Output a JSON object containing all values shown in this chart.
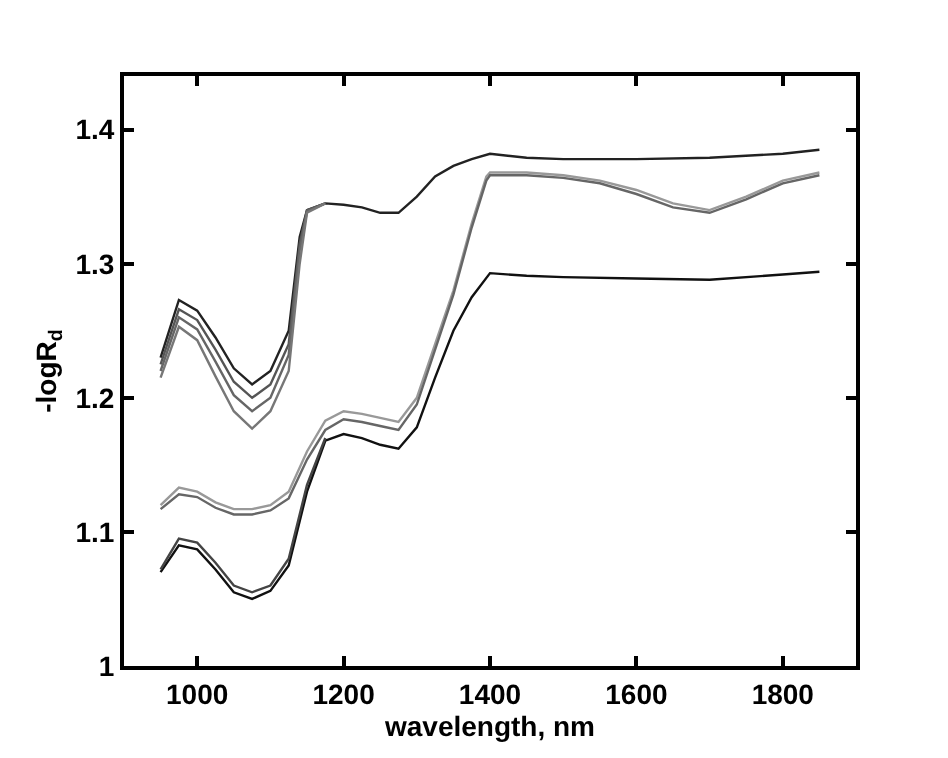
{
  "chart_data": {
    "type": "line",
    "xlabel": "wavelength, nm",
    "ylabel": "-logR$_{d}$",
    "xlim": [
      900,
      1900
    ],
    "ylim": [
      1,
      1.44
    ],
    "xticks": [
      1000,
      1200,
      1400,
      1600,
      1800
    ],
    "yticks": [
      1,
      1.1,
      1.2,
      1.3,
      1.4
    ],
    "marker": "none",
    "line_style": "solid",
    "series": [
      {
        "color": "#222222",
        "x": [
          950,
          975,
          1000,
          1025,
          1050,
          1075,
          1100,
          1125,
          1140,
          1150,
          1175,
          1200,
          1225,
          1250,
          1275,
          1300,
          1325,
          1350,
          1375,
          1400,
          1450,
          1500,
          1600,
          1700,
          1800,
          1850
        ],
        "values": [
          1.23,
          1.273,
          1.265,
          1.245,
          1.222,
          1.21,
          1.22,
          1.25,
          1.32,
          1.34,
          1.345,
          1.344,
          1.342,
          1.338,
          1.338,
          1.35,
          1.365,
          1.373,
          1.378,
          1.382,
          1.379,
          1.378,
          1.378,
          1.379,
          1.382,
          1.385
        ]
      },
      {
        "color": "#555555",
        "x": [
          950,
          975,
          1000,
          1025,
          1050,
          1075,
          1100,
          1125,
          1140,
          1150,
          1175
        ],
        "values": [
          1.225,
          1.266,
          1.258,
          1.236,
          1.212,
          1.2,
          1.21,
          1.24,
          1.315,
          1.34,
          1.345
        ]
      },
      {
        "color": "#666666",
        "x": [
          950,
          975,
          1000,
          1025,
          1050,
          1075,
          1100,
          1125,
          1140,
          1150,
          1175
        ],
        "values": [
          1.22,
          1.26,
          1.251,
          1.227,
          1.202,
          1.19,
          1.2,
          1.232,
          1.31,
          1.339,
          1.345
        ]
      },
      {
        "color": "#777777",
        "x": [
          950,
          975,
          1000,
          1025,
          1050,
          1075,
          1100,
          1125,
          1140,
          1150,
          1175
        ],
        "values": [
          1.215,
          1.253,
          1.243,
          1.216,
          1.19,
          1.177,
          1.19,
          1.22,
          1.3,
          1.338,
          1.345
        ]
      },
      {
        "color": "#999999",
        "x": [
          950,
          975,
          1000,
          1025,
          1050,
          1075,
          1100,
          1125,
          1150,
          1175,
          1200,
          1225,
          1250,
          1275,
          1300,
          1325,
          1350,
          1375,
          1395,
          1400,
          1450,
          1500,
          1550,
          1600,
          1650,
          1700,
          1750,
          1800,
          1850
        ],
        "values": [
          1.12,
          1.133,
          1.13,
          1.122,
          1.117,
          1.117,
          1.12,
          1.13,
          1.16,
          1.183,
          1.19,
          1.188,
          1.185,
          1.182,
          1.2,
          1.24,
          1.28,
          1.33,
          1.365,
          1.368,
          1.368,
          1.366,
          1.362,
          1.355,
          1.345,
          1.34,
          1.35,
          1.362,
          1.368
        ]
      },
      {
        "color": "#666666",
        "x": [
          950,
          975,
          1000,
          1025,
          1050,
          1075,
          1100,
          1125,
          1150,
          1175,
          1200,
          1225,
          1250,
          1275,
          1300,
          1325,
          1350,
          1375,
          1395,
          1400,
          1450,
          1500,
          1550,
          1600,
          1650,
          1700,
          1750,
          1800,
          1850
        ],
        "values": [
          1.117,
          1.128,
          1.126,
          1.118,
          1.113,
          1.113,
          1.116,
          1.125,
          1.154,
          1.176,
          1.184,
          1.182,
          1.179,
          1.176,
          1.195,
          1.236,
          1.277,
          1.327,
          1.362,
          1.366,
          1.366,
          1.364,
          1.36,
          1.352,
          1.342,
          1.338,
          1.348,
          1.36,
          1.366
        ]
      },
      {
        "color": "#111111",
        "x": [
          950,
          975,
          1000,
          1025,
          1050,
          1075,
          1100,
          1125,
          1150,
          1175,
          1200,
          1225,
          1250,
          1275,
          1300,
          1325,
          1350,
          1375,
          1400,
          1450,
          1500,
          1600,
          1700,
          1800,
          1850
        ],
        "values": [
          1.07,
          1.09,
          1.087,
          1.072,
          1.055,
          1.05,
          1.056,
          1.075,
          1.13,
          1.168,
          1.173,
          1.17,
          1.165,
          1.162,
          1.178,
          1.215,
          1.25,
          1.275,
          1.293,
          1.291,
          1.29,
          1.289,
          1.288,
          1.292,
          1.294
        ]
      },
      {
        "color": "#444444",
        "x": [
          950,
          975,
          1000,
          1025,
          1050,
          1075,
          1100,
          1125,
          1150,
          1175
        ],
        "values": [
          1.072,
          1.095,
          1.092,
          1.077,
          1.06,
          1.055,
          1.06,
          1.08,
          1.135,
          1.17
        ]
      }
    ]
  }
}
